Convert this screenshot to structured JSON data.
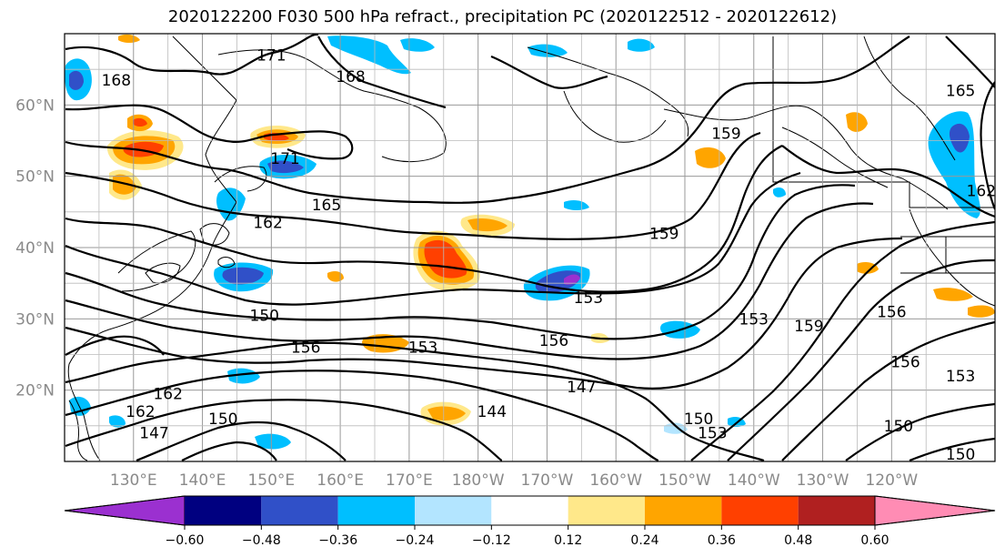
{
  "title": "2020122200 F030 500 hPa refract., precipitation PC (2020122512 - 2020122612)",
  "chart_data": {
    "type": "map-contour",
    "x_ticks": [
      130,
      140,
      150,
      160,
      170,
      180,
      190,
      200,
      210,
      220,
      230,
      240
    ],
    "x_labels": [
      "130°E",
      "140°E",
      "150°E",
      "160°E",
      "170°E",
      "180°W",
      "170°W",
      "160°W",
      "150°W",
      "140°W",
      "130°W",
      "120°W"
    ],
    "y_ticks": [
      20,
      30,
      40,
      50,
      60
    ],
    "y_labels": [
      "20°N",
      "30°N",
      "40°N",
      "50°N",
      "60°N"
    ],
    "xlim": [
      120,
      255
    ],
    "ylim": [
      10,
      70
    ],
    "grid": true,
    "contour_labels": [
      {
        "text": "171",
        "lon": 150,
        "lat": 67
      },
      {
        "text": "168",
        "lon": 127.5,
        "lat": 63.5
      },
      {
        "text": "168",
        "lon": 161.5,
        "lat": 64
      },
      {
        "text": "165",
        "lon": 250,
        "lat": 62
      },
      {
        "text": "171",
        "lon": 152,
        "lat": 52.5
      },
      {
        "text": "165",
        "lon": 158,
        "lat": 46
      },
      {
        "text": "162",
        "lon": 149.5,
        "lat": 43.5
      },
      {
        "text": "159",
        "lon": 216,
        "lat": 56
      },
      {
        "text": "162",
        "lon": 253,
        "lat": 48
      },
      {
        "text": "159",
        "lon": 207,
        "lat": 42
      },
      {
        "text": "153",
        "lon": 196,
        "lat": 33
      },
      {
        "text": "150",
        "lon": 149,
        "lat": 30.5
      },
      {
        "text": "156",
        "lon": 155,
        "lat": 26
      },
      {
        "text": "156",
        "lon": 191,
        "lat": 27
      },
      {
        "text": "153",
        "lon": 172,
        "lat": 26
      },
      {
        "text": "153",
        "lon": 220,
        "lat": 30
      },
      {
        "text": "159",
        "lon": 228,
        "lat": 29
      },
      {
        "text": "156",
        "lon": 240,
        "lat": 31
      },
      {
        "text": "156",
        "lon": 242,
        "lat": 24
      },
      {
        "text": "153",
        "lon": 250,
        "lat": 22
      },
      {
        "text": "147",
        "lon": 195,
        "lat": 20.5
      },
      {
        "text": "144",
        "lon": 182,
        "lat": 17
      },
      {
        "text": "162",
        "lon": 135,
        "lat": 19.5
      },
      {
        "text": "162",
        "lon": 131,
        "lat": 17
      },
      {
        "text": "147",
        "lon": 133,
        "lat": 14
      },
      {
        "text": "150",
        "lon": 143,
        "lat": 16
      },
      {
        "text": "150",
        "lon": 212,
        "lat": 16
      },
      {
        "text": "153",
        "lon": 214,
        "lat": 14
      },
      {
        "text": "150",
        "lon": 241,
        "lat": 15
      },
      {
        "text": "150",
        "lon": 250,
        "lat": 11
      }
    ],
    "colorbar": {
      "ticks": [
        "−0.60",
        "−0.48",
        "−0.36",
        "−0.24",
        "−0.12",
        "0.12",
        "0.24",
        "0.36",
        "0.48",
        "0.60"
      ],
      "colors": [
        "#9b30d0",
        "#000080",
        "#3050c8",
        "#00bfff",
        "#b3e5ff",
        "#ffffff",
        "#ffe88a",
        "#ffa500",
        "#ff4000",
        "#b02020",
        "#ff8cb4"
      ]
    }
  }
}
